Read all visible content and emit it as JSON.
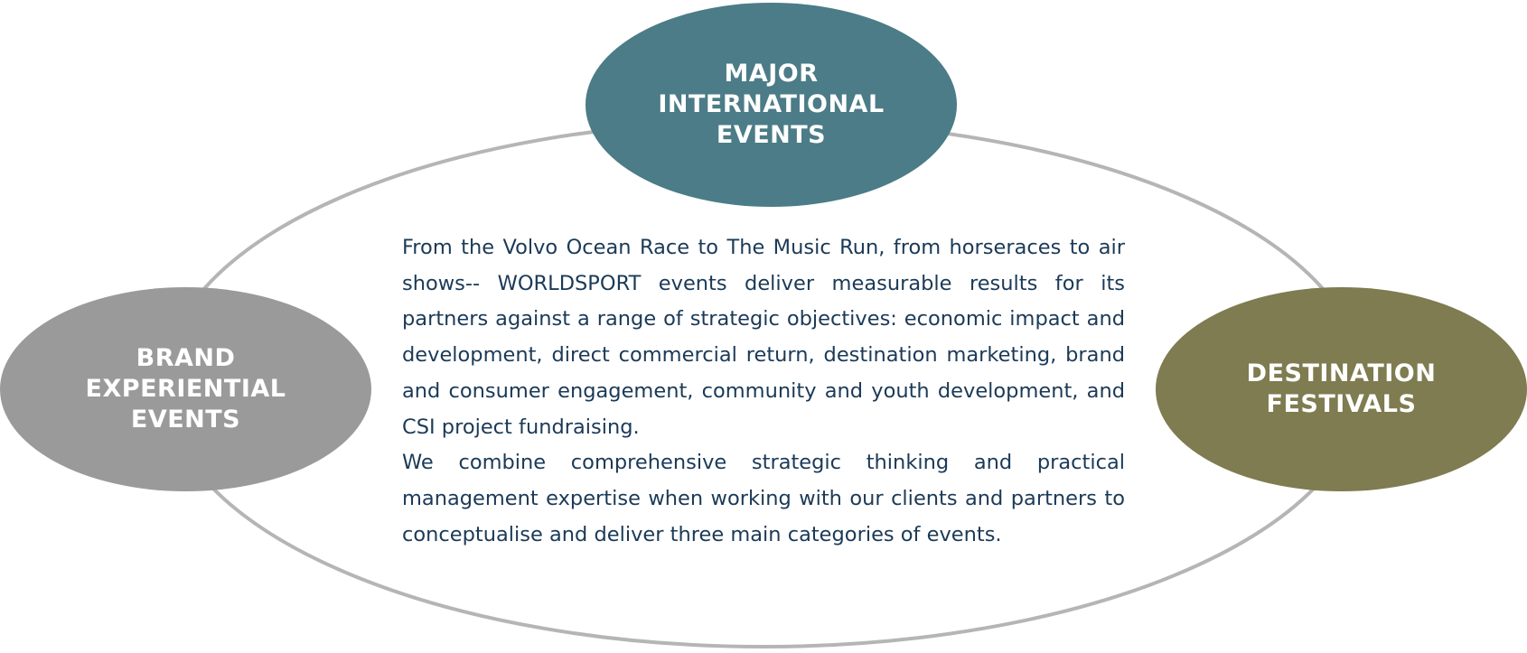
{
  "diagram": {
    "colors": {
      "ring": "#b5b5b5",
      "text": "#1b3a57",
      "label": "#ffffff"
    },
    "nodes": [
      {
        "id": "major",
        "label": "MAJOR\nINTERNATIONAL\nEVENTS",
        "color": "#4b7c87"
      },
      {
        "id": "brand",
        "label": "BRAND\nEXPERIENTIAL\nEVENTS",
        "color": "#9a9a9a"
      },
      {
        "id": "destination",
        "label": "DESTINATION\nFESTIVALS",
        "color": "#7e7c50"
      }
    ],
    "description": {
      "paragraph_1": "From the Volvo Ocean Race to The Music Run, from horseraces to air shows-- WORLDSPORT events deliver measurable results for its partners against a range of strategic objectives:  economic impact and development, direct commercial return, destination marketing, brand and consumer engagement, community and youth development, and CSI project fundraising.",
      "paragraph_2": "We combine comprehensive strategic thinking and practical management expertise when working with our clients and partners to conceptualise and deliver three main categories of events."
    }
  }
}
